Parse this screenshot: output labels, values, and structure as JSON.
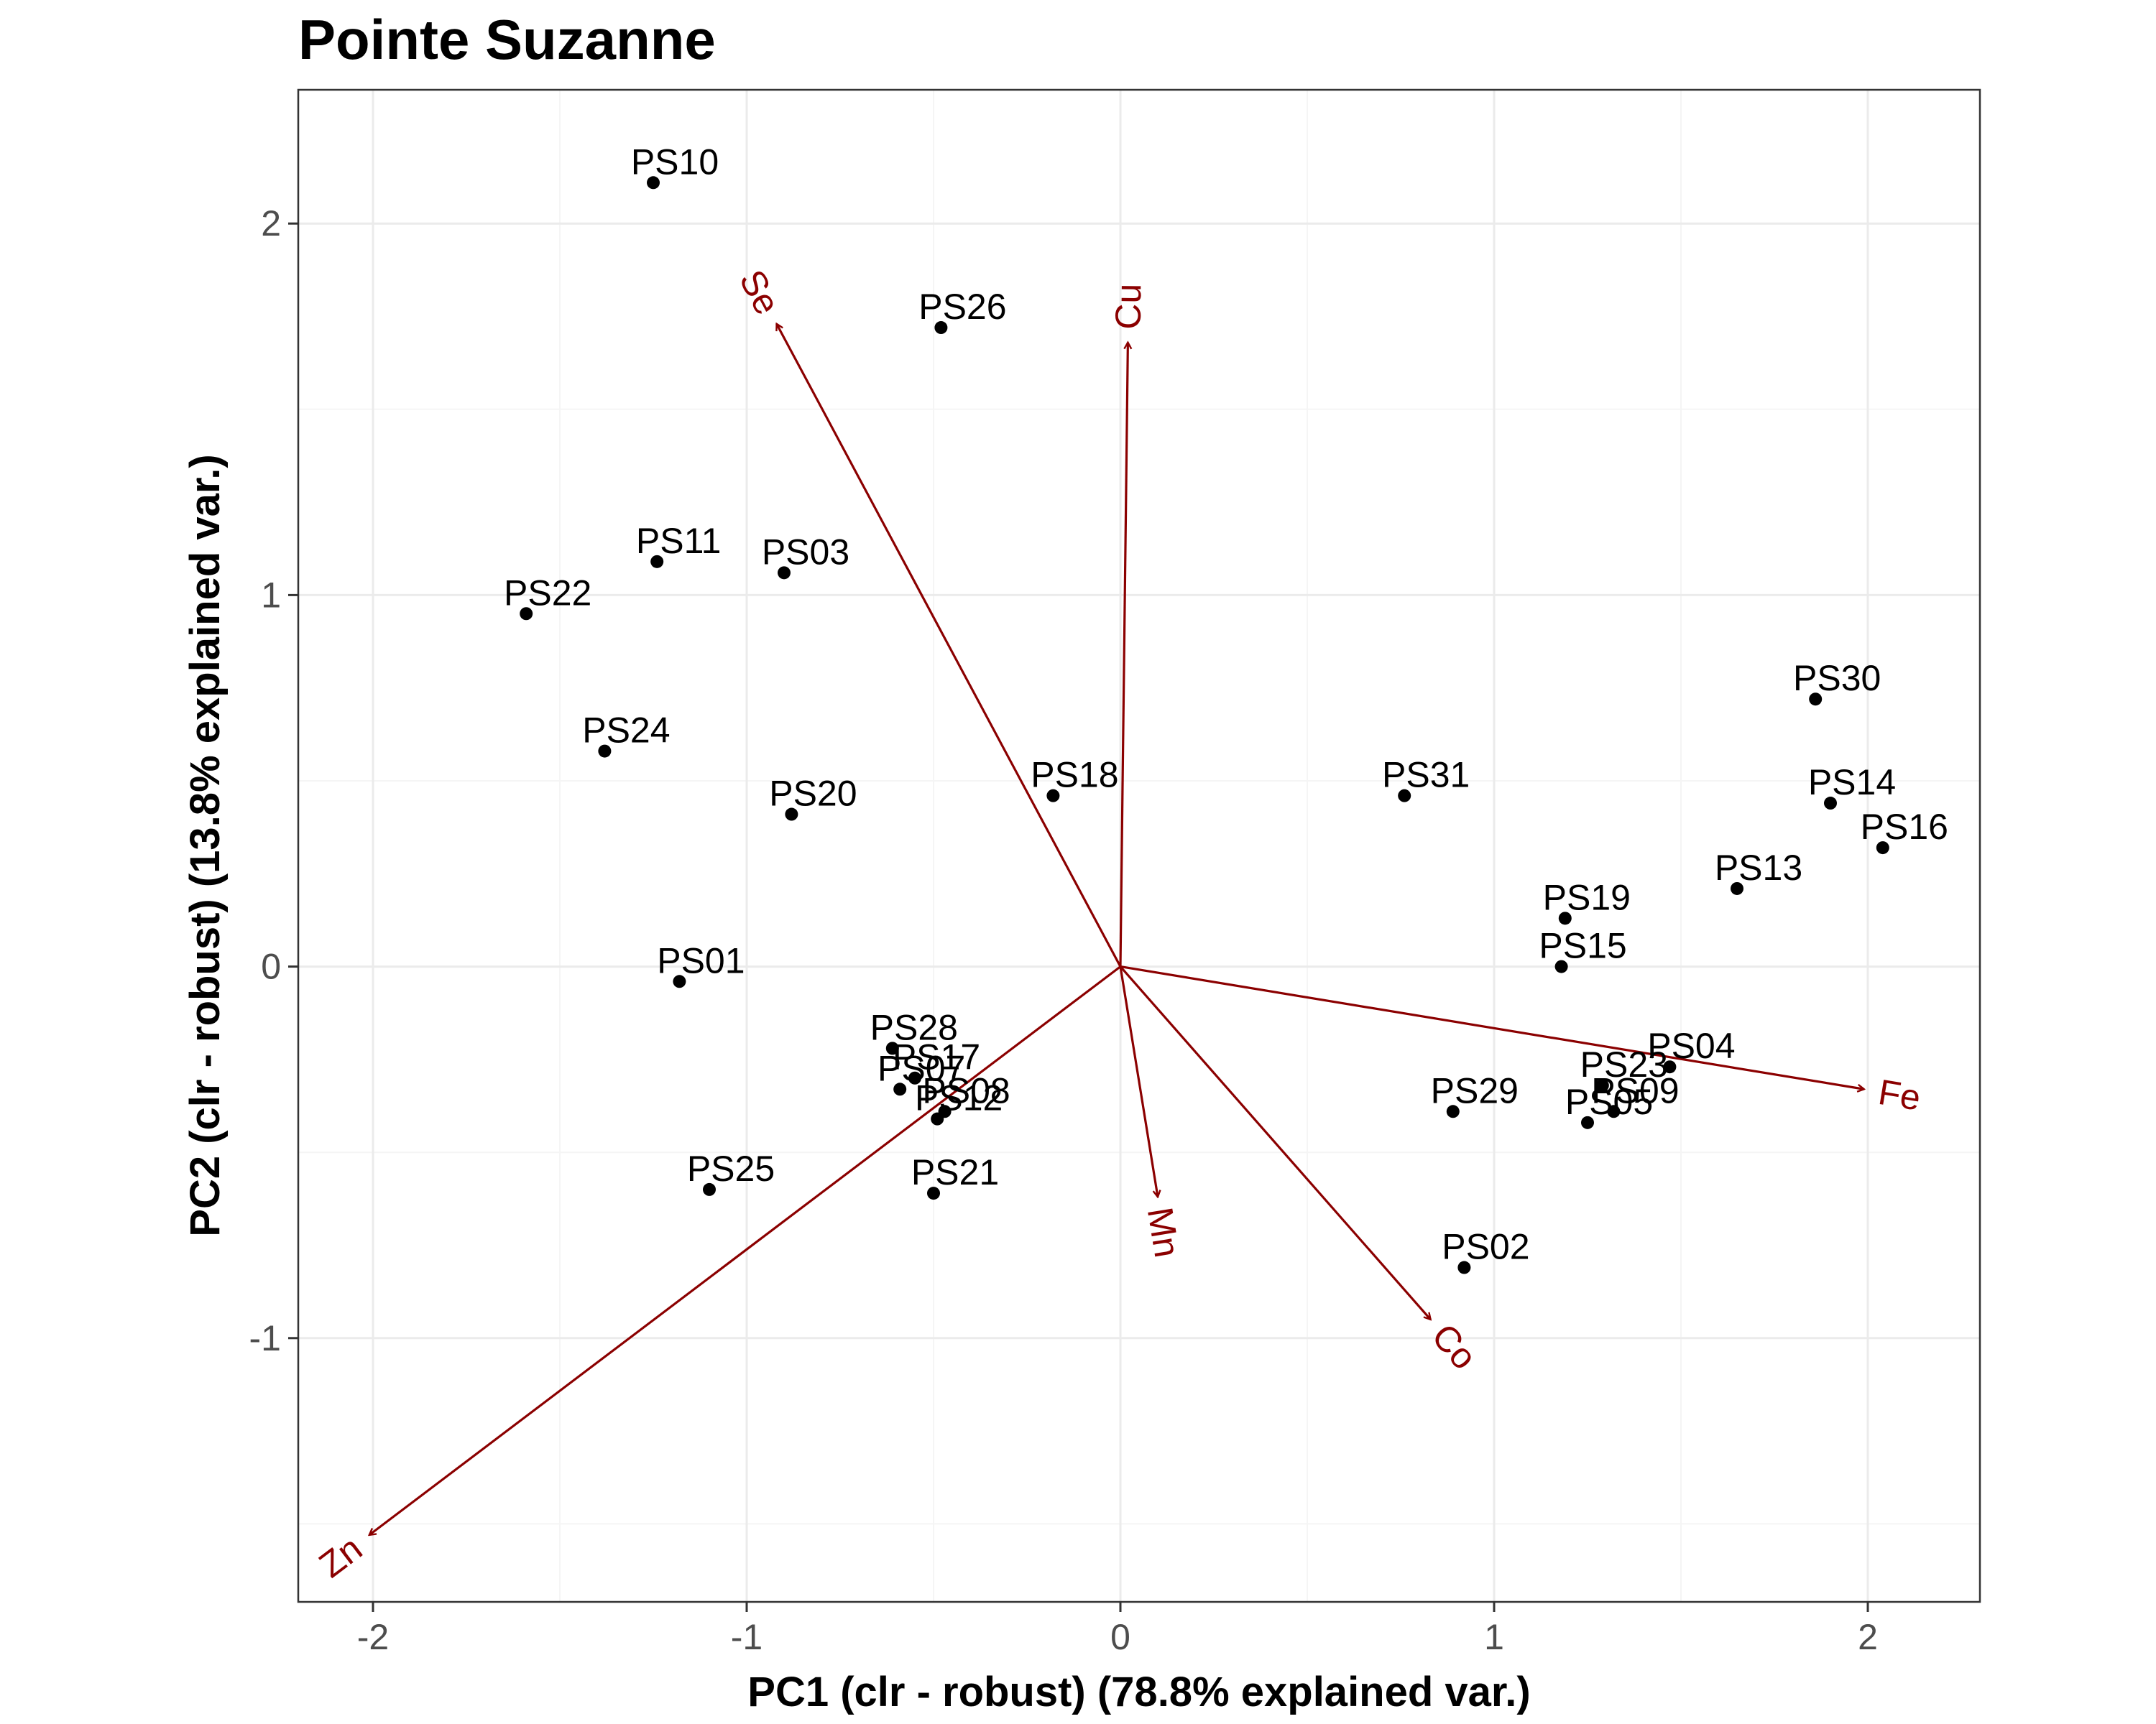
{
  "chart_data": {
    "type": "scatter",
    "title": "Pointe Suzanne",
    "xlabel": "PC1 (clr - robust) (78.8% explained var.)",
    "ylabel": "PC2 (clr - robust) (13.8% explained var.)",
    "xlim": [
      -2.2,
      2.3
    ],
    "ylim": [
      -1.71,
      2.36
    ],
    "x_ticks": [
      -2,
      -1,
      0,
      1,
      2
    ],
    "y_ticks": [
      -1,
      0,
      1,
      2
    ],
    "x_tick_labels": [
      "-2",
      "-1",
      "0",
      "1",
      "2"
    ],
    "y_tick_labels": [
      "-1",
      "0",
      "1",
      "2"
    ],
    "grid": true,
    "point_color": "#000000",
    "loading_color": "#8b0000",
    "points": [
      {
        "label": "PS10",
        "x": -1.25,
        "y": 2.11
      },
      {
        "label": "PS26",
        "x": -0.48,
        "y": 1.72
      },
      {
        "label": "PS11",
        "x": -1.24,
        "y": 1.09
      },
      {
        "label": "PS03",
        "x": -0.9,
        "y": 1.06
      },
      {
        "label": "PS22",
        "x": -1.59,
        "y": 0.95
      },
      {
        "label": "PS24",
        "x": -1.38,
        "y": 0.58
      },
      {
        "label": "PS20",
        "x": -0.88,
        "y": 0.41
      },
      {
        "label": "PS18",
        "x": -0.18,
        "y": 0.46
      },
      {
        "label": "PS31",
        "x": 0.76,
        "y": 0.46
      },
      {
        "label": "PS30",
        "x": 1.86,
        "y": 0.72
      },
      {
        "label": "PS14",
        "x": 1.9,
        "y": 0.44
      },
      {
        "label": "PS16",
        "x": 2.04,
        "y": 0.32
      },
      {
        "label": "PS13",
        "x": 1.65,
        "y": 0.21
      },
      {
        "label": "PS19",
        "x": 1.19,
        "y": 0.13
      },
      {
        "label": "PS15",
        "x": 1.18,
        "y": 0.0
      },
      {
        "label": "PS01",
        "x": -1.18,
        "y": -0.04
      },
      {
        "label": "PS28",
        "x": -0.61,
        "y": -0.22
      },
      {
        "label": "PS17",
        "x": -0.55,
        "y": -0.3
      },
      {
        "label": "PS07",
        "x": -0.59,
        "y": -0.33
      },
      {
        "label": "PS08",
        "x": -0.47,
        "y": -0.39
      },
      {
        "label": "PS12",
        "x": -0.49,
        "y": -0.41
      },
      {
        "label": "PS04",
        "x": 1.47,
        "y": -0.27
      },
      {
        "label": "PS23",
        "x": 1.29,
        "y": -0.32
      },
      {
        "label": "PS09",
        "x": 1.32,
        "y": -0.39
      },
      {
        "label": "PS05",
        "x": 1.25,
        "y": -0.42
      },
      {
        "label": "PS29",
        "x": 0.89,
        "y": -0.39
      },
      {
        "label": "PS25",
        "x": -1.1,
        "y": -0.6
      },
      {
        "label": "PS21",
        "x": -0.5,
        "y": -0.61
      },
      {
        "label": "PS02",
        "x": 0.92,
        "y": -0.81
      }
    ],
    "loadings": [
      {
        "label": "Se",
        "x": -0.92,
        "y": 1.73
      },
      {
        "label": "Cu",
        "x": 0.02,
        "y": 1.68
      },
      {
        "label": "Fe",
        "x": 1.99,
        "y": -0.33
      },
      {
        "label": "Mn",
        "x": 0.1,
        "y": -0.62
      },
      {
        "label": "Co",
        "x": 0.83,
        "y": -0.95
      },
      {
        "label": "Zn",
        "x": -2.01,
        "y": -1.53
      }
    ]
  }
}
